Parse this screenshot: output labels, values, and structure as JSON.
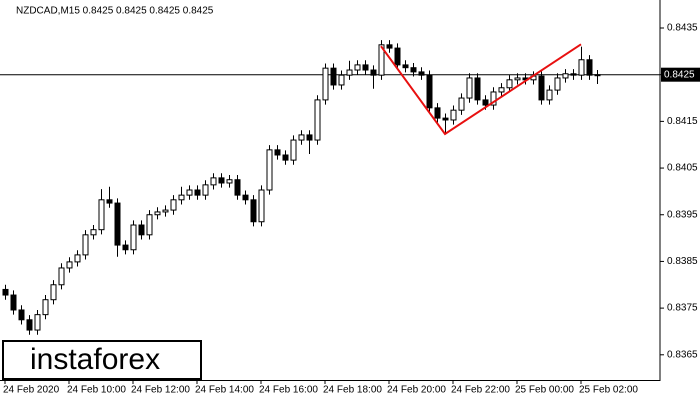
{
  "chart_data": {
    "type": "candlestick",
    "header": "NZDCAD,M15  0.8425 0.8425 0.8425 0.8425",
    "logo": "instaforex",
    "categories": [
      "24 Feb 2020",
      null,
      null,
      null,
      null,
      null,
      null,
      null,
      "24 Feb 10:00",
      null,
      null,
      null,
      null,
      null,
      null,
      null,
      "24 Feb 12:00",
      null,
      null,
      null,
      null,
      null,
      null,
      null,
      "24 Feb 14:00",
      null,
      null,
      null,
      null,
      null,
      null,
      null,
      "24 Feb 16:00",
      null,
      null,
      null,
      null,
      null,
      null,
      null,
      "24 Feb 18:00",
      null,
      null,
      null,
      null,
      null,
      null,
      null,
      "24 Feb 20:00",
      null,
      null,
      null,
      null,
      null,
      null,
      null,
      "24 Feb 22:00",
      null,
      null,
      null,
      null,
      null,
      null,
      null,
      "25 Feb 00:00",
      null,
      null,
      null,
      null,
      null,
      null,
      null,
      "25 Feb 02:00",
      null,
      null
    ],
    "open": [
      0.8379,
      0.83778,
      0.83746,
      0.83725,
      0.83703,
      0.83736,
      0.83768,
      0.838,
      0.83836,
      0.83849,
      0.83864,
      0.83907,
      0.83918,
      0.83982,
      0.83975,
      0.83885,
      0.83875,
      0.83928,
      0.83907,
      0.8395,
      0.83956,
      0.8396,
      0.83982,
      0.83992,
      0.84003,
      0.83992,
      0.84014,
      0.84029,
      0.84018,
      0.84025,
      0.83992,
      0.83982,
      0.83935,
      0.84003,
      0.84089,
      0.84078,
      0.84067,
      0.8411,
      0.84121,
      0.8411,
      0.84196,
      0.84264,
      0.84228,
      0.84249,
      0.8426,
      0.84271,
      0.8426,
      0.84249,
      0.84314,
      0.84307,
      0.84271,
      0.84265,
      0.84256,
      0.84249,
      0.84179,
      0.84157,
      0.84153,
      0.84174,
      0.842,
      0.84243,
      0.84196,
      0.84185,
      0.84213,
      0.84222,
      0.84239,
      0.84243,
      0.84239,
      0.84247,
      0.84196,
      0.84217,
      0.84243,
      0.84252,
      0.84249,
      0.84282,
      0.84249
    ],
    "high": [
      0.838,
      0.83788,
      0.83756,
      0.83735,
      0.83746,
      0.83778,
      0.8381,
      0.83846,
      0.83859,
      0.83874,
      0.83917,
      0.83928,
      0.84005,
      0.8401,
      0.83985,
      0.83895,
      0.83938,
      0.83938,
      0.8396,
      0.83966,
      0.8397,
      0.83992,
      0.8401,
      0.84013,
      0.84013,
      0.84024,
      0.84039,
      0.84039,
      0.84035,
      0.84035,
      0.84002,
      0.83992,
      0.84013,
      0.84099,
      0.84099,
      0.84088,
      0.8412,
      0.84131,
      0.84131,
      0.84206,
      0.84274,
      0.84274,
      0.84259,
      0.8428,
      0.84281,
      0.84281,
      0.8427,
      0.84324,
      0.84324,
      0.84317,
      0.84281,
      0.84275,
      0.84266,
      0.84259,
      0.84189,
      0.84167,
      0.84184,
      0.8421,
      0.84253,
      0.84253,
      0.84206,
      0.84223,
      0.84232,
      0.84249,
      0.84253,
      0.84253,
      0.84257,
      0.84257,
      0.84227,
      0.84253,
      0.84262,
      0.84262,
      0.8431,
      0.84292,
      0.8426
    ],
    "low": [
      0.83768,
      0.83736,
      0.83715,
      0.83693,
      0.83693,
      0.83726,
      0.83758,
      0.8379,
      0.83826,
      0.83839,
      0.83854,
      0.83897,
      0.83908,
      0.83965,
      0.8386,
      0.83865,
      0.83865,
      0.83897,
      0.83897,
      0.8394,
      0.83946,
      0.8395,
      0.83972,
      0.83982,
      0.83982,
      0.83982,
      0.84004,
      0.84008,
      0.84008,
      0.83982,
      0.83972,
      0.83925,
      0.83925,
      0.83993,
      0.84068,
      0.84057,
      0.84057,
      0.841,
      0.8408,
      0.841,
      0.84186,
      0.84218,
      0.84218,
      0.84239,
      0.8425,
      0.8425,
      0.8422,
      0.84239,
      0.84297,
      0.84261,
      0.84255,
      0.84246,
      0.84239,
      0.84169,
      0.84147,
      0.84123,
      0.84143,
      0.84164,
      0.8419,
      0.84186,
      0.84175,
      0.84175,
      0.84203,
      0.84212,
      0.84229,
      0.84229,
      0.84229,
      0.84186,
      0.84186,
      0.84207,
      0.84233,
      0.84239,
      0.84239,
      0.84239,
      0.8423
    ],
    "close": [
      0.83778,
      0.83746,
      0.83725,
      0.83703,
      0.83736,
      0.83768,
      0.838,
      0.83836,
      0.83849,
      0.83864,
      0.83907,
      0.83918,
      0.83982,
      0.83975,
      0.83885,
      0.83875,
      0.83928,
      0.83907,
      0.8395,
      0.83956,
      0.8396,
      0.83982,
      0.83992,
      0.84003,
      0.83992,
      0.84014,
      0.84029,
      0.84018,
      0.84025,
      0.83992,
      0.83982,
      0.83935,
      0.84003,
      0.84089,
      0.84078,
      0.84067,
      0.8411,
      0.84121,
      0.8411,
      0.84196,
      0.84264,
      0.84228,
      0.84249,
      0.8426,
      0.84271,
      0.8426,
      0.84249,
      0.84314,
      0.84307,
      0.84271,
      0.84265,
      0.84256,
      0.84249,
      0.84179,
      0.84157,
      0.84153,
      0.84174,
      0.842,
      0.84243,
      0.84196,
      0.84185,
      0.84213,
      0.84222,
      0.84239,
      0.84243,
      0.84239,
      0.84247,
      0.84196,
      0.84217,
      0.84243,
      0.84252,
      0.84249,
      0.84282,
      0.84249,
      0.8425
    ],
    "up_color": "#ffffff",
    "down_color": "#000000",
    "ylim": [
      0.83596,
      0.8441
    ],
    "yticks": [
      0.8365,
      0.8375,
      0.8385,
      0.8395,
      0.8405,
      0.8415,
      0.8425,
      0.8435
    ],
    "current_price": 0.8425,
    "pattern_line": {
      "color": "#e81010",
      "x_index": [
        47,
        55,
        72
      ],
      "price": [
        0.84311,
        0.84123,
        0.84315
      ]
    }
  }
}
